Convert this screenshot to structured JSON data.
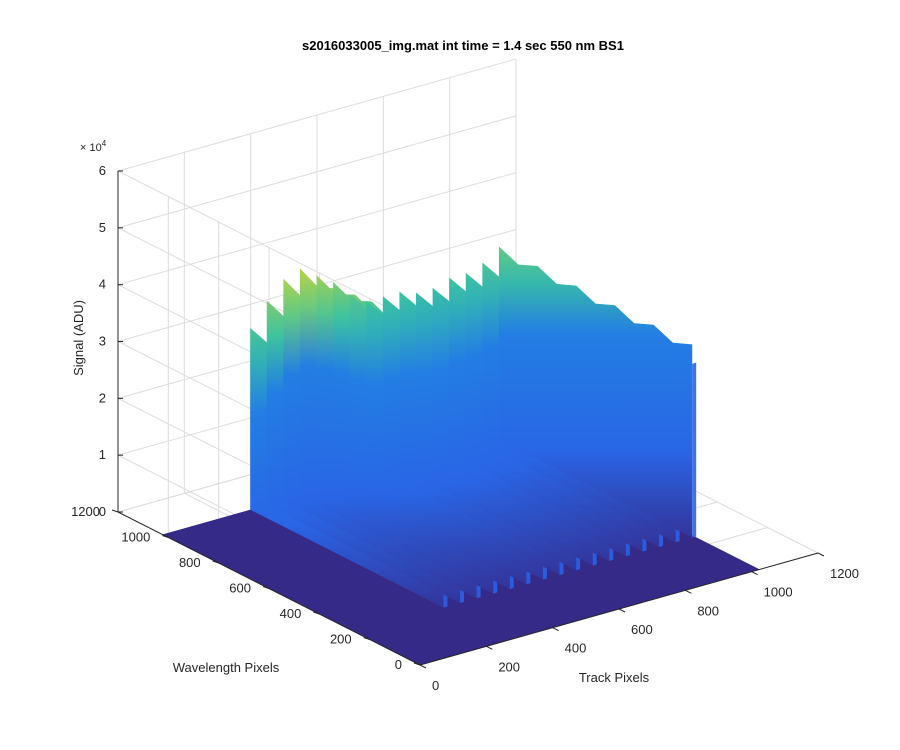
{
  "chart_data": {
    "type": "surface",
    "title": "s2016033005_img.mat int time = 1.4 sec  550 nm BS1",
    "xlabel": "Track Pixels",
    "ylabel": "Wavelength Pixels",
    "zlabel": "Signal (ADU)",
    "z_exponent_label": "× 10^4",
    "z_exponent_base": "× 10",
    "z_exponent_power": "4",
    "xlim": [
      0,
      1200
    ],
    "ylim": [
      0,
      1200
    ],
    "zlim": [
      0,
      60000
    ],
    "x_ticks": [
      "0",
      "200",
      "400",
      "600",
      "800",
      "1000",
      "1200"
    ],
    "y_ticks": [
      "0",
      "200",
      "400",
      "600",
      "800",
      "1000",
      "1200"
    ],
    "z_ticks": [
      "0",
      "1",
      "2",
      "3",
      "4",
      "5",
      "6"
    ],
    "grid": true,
    "colormap": "parula",
    "colors": {
      "floor": "#352a87",
      "low": "#2c5ce8",
      "mid": "#1f8ee0",
      "high": "#3cc3a0",
      "peak": "#c8d63a"
    },
    "wavelength_pixel_range": [
      0,
      1024
    ],
    "track_pixel_range": [
      256,
      1024
    ],
    "spectral_tracks": [
      {
        "track_pixel": 265,
        "peak_signal": 32000,
        "base_signal": 25000
      },
      {
        "track_pixel": 315,
        "peak_signal": 36000,
        "base_signal": 28000
      },
      {
        "track_pixel": 365,
        "peak_signal": 39000,
        "base_signal": 30000
      },
      {
        "track_pixel": 415,
        "peak_signal": 40000,
        "base_signal": 30000
      },
      {
        "track_pixel": 465,
        "peak_signal": 38000,
        "base_signal": 29000
      },
      {
        "track_pixel": 515,
        "peak_signal": 36000,
        "base_signal": 27000
      },
      {
        "track_pixel": 565,
        "peak_signal": 33000,
        "base_signal": 26000
      },
      {
        "track_pixel": 615,
        "peak_signal": 31000,
        "base_signal": 25000
      },
      {
        "track_pixel": 665,
        "peak_signal": 31000,
        "base_signal": 25000
      },
      {
        "track_pixel": 715,
        "peak_signal": 31000,
        "base_signal": 25000
      },
      {
        "track_pixel": 765,
        "peak_signal": 30000,
        "base_signal": 24500
      },
      {
        "track_pixel": 815,
        "peak_signal": 30000,
        "base_signal": 24500
      },
      {
        "track_pixel": 865,
        "peak_signal": 31000,
        "base_signal": 25000
      },
      {
        "track_pixel": 915,
        "peak_signal": 31000,
        "base_signal": 25000
      },
      {
        "track_pixel": 965,
        "peak_signal": 32000,
        "base_signal": 25500
      },
      {
        "track_pixel": 1015,
        "peak_signal": 34000,
        "base_signal": 26000
      }
    ]
  }
}
